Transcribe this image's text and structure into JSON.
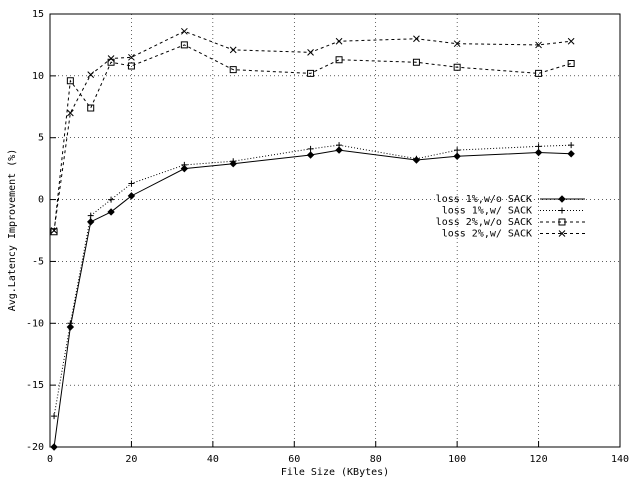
{
  "chart_data": {
    "type": "line",
    "xlabel": "File Size (KBytes)",
    "ylabel": "Avg.Latency Improvement (%)",
    "x": [
      1,
      5,
      10,
      15,
      20,
      33,
      45,
      64,
      71,
      90,
      100,
      120,
      128
    ],
    "series": [
      {
        "name": "loss 1%,w/o SACK",
        "color": "#000000",
        "dash": "solid",
        "marker": "diamond",
        "values": [
          -20,
          -10.3,
          -1.8,
          -1.0,
          0.3,
          2.5,
          2.9,
          3.6,
          4.0,
          3.2,
          3.5,
          3.8,
          3.7
        ]
      },
      {
        "name": "loss 1%,w/ SACK",
        "color": "#000000",
        "dash": "dotted",
        "marker": "plus",
        "values": [
          -17.5,
          -10,
          -1.3,
          0,
          1.3,
          2.8,
          3.1,
          4.1,
          4.4,
          3.3,
          4.0,
          4.3,
          4.4
        ]
      },
      {
        "name": "loss 2%,w/o SACK",
        "color": "#000000",
        "dash": "dashed",
        "marker": "square",
        "values": [
          -2.6,
          9.6,
          7.4,
          11.1,
          10.8,
          12.5,
          10.5,
          10.2,
          11.3,
          11.1,
          10.7,
          10.2,
          11.0
        ]
      },
      {
        "name": "loss 2%,w/ SACK",
        "color": "#000000",
        "dash": "dashed",
        "marker": "cross",
        "values": [
          -2.5,
          7.0,
          10.1,
          11.4,
          11.5,
          13.6,
          12.1,
          11.9,
          12.8,
          13.0,
          12.6,
          12.5,
          12.8
        ]
      }
    ],
    "xlim": [
      0,
      140
    ],
    "xticks": [
      0,
      20,
      40,
      60,
      80,
      100,
      120,
      140
    ],
    "ylim": [
      -20,
      15
    ],
    "yticks": [
      -20,
      -15,
      -10,
      -5,
      0,
      5,
      10,
      15
    ],
    "grid": true,
    "legend": "right"
  }
}
